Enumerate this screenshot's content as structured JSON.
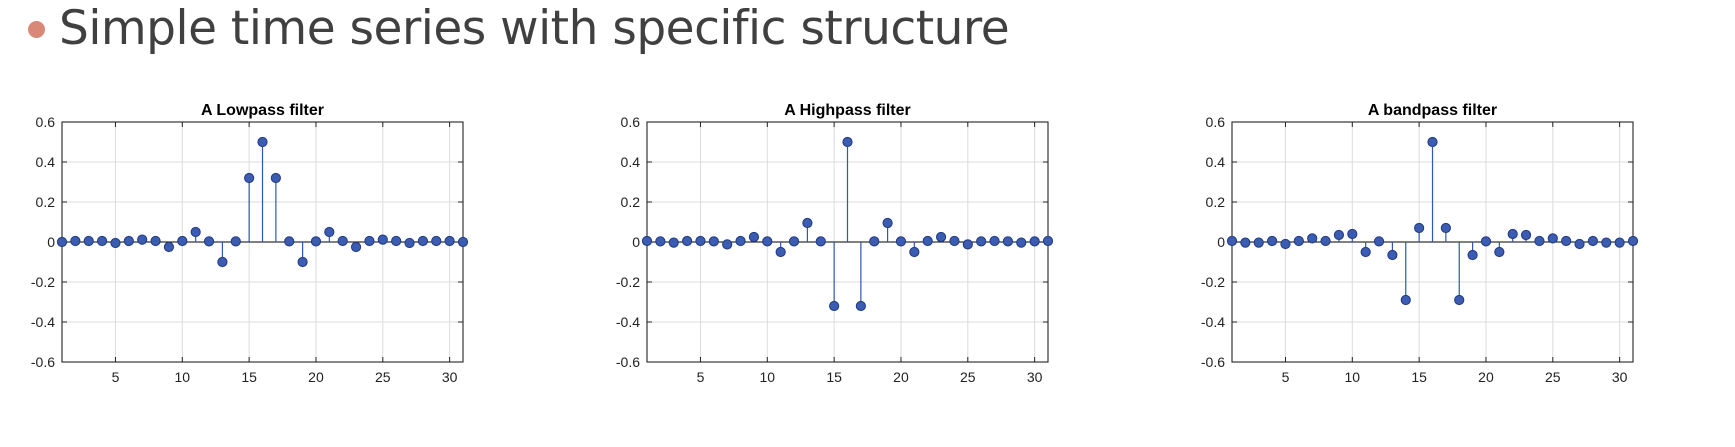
{
  "heading": {
    "text": "Simple time series with specific structure",
    "bullet_color": "#d98877"
  },
  "chart_data": [
    {
      "type": "stem",
      "title": "A Lowpass filter",
      "x": [
        1,
        2,
        3,
        4,
        5,
        6,
        7,
        8,
        9,
        10,
        11,
        12,
        13,
        14,
        15,
        16,
        17,
        18,
        19,
        20,
        21,
        22,
        23,
        24,
        25,
        26,
        27,
        28,
        29,
        30,
        31
      ],
      "values": [
        0,
        0.005,
        0.005,
        0.005,
        -0.005,
        0.005,
        0.012,
        0.005,
        -0.025,
        0.005,
        0.05,
        0.003,
        -0.1,
        0.003,
        0.32,
        0.5,
        0.32,
        0.003,
        -0.1,
        0.003,
        0.05,
        0.005,
        -0.025,
        0.005,
        0.012,
        0.005,
        -0.005,
        0.005,
        0.005,
        0.005,
        0
      ],
      "xlim": [
        1,
        31
      ],
      "ylim": [
        -0.6,
        0.6
      ],
      "xticks": [
        5,
        10,
        15,
        20,
        25,
        30
      ],
      "yticks": [
        -0.6,
        -0.4,
        -0.2,
        0,
        0.2,
        0.4,
        0.6
      ],
      "ytick_labels": [
        "-0.6",
        "-0.4",
        "-0.2",
        "0",
        "0.2",
        "0.4",
        "0.6"
      ],
      "grid": true,
      "marker_color": "#3b5cb0",
      "stem_color": "#2f56b5"
    },
    {
      "type": "stem",
      "title": "A Highpass filter",
      "x": [
        1,
        2,
        3,
        4,
        5,
        6,
        7,
        8,
        9,
        10,
        11,
        12,
        13,
        14,
        15,
        16,
        17,
        18,
        19,
        20,
        21,
        22,
        23,
        24,
        25,
        26,
        27,
        28,
        29,
        30,
        31
      ],
      "values": [
        0.005,
        0.003,
        -0.003,
        0.005,
        0.005,
        0.003,
        -0.012,
        0.005,
        0.025,
        0.003,
        -0.05,
        0.003,
        0.095,
        0.003,
        -0.32,
        0.5,
        -0.32,
        0.003,
        0.095,
        0.003,
        -0.05,
        0.005,
        0.025,
        0.005,
        -0.012,
        0.003,
        0.005,
        0.003,
        -0.003,
        0.003,
        0.005
      ],
      "xlim": [
        1,
        31
      ],
      "ylim": [
        -0.6,
        0.6
      ],
      "xticks": [
        5,
        10,
        15,
        20,
        25,
        30
      ],
      "yticks": [
        -0.6,
        -0.4,
        -0.2,
        0,
        0.2,
        0.4,
        0.6
      ],
      "ytick_labels": [
        "-0.6",
        "-0.4",
        "-0.2",
        "0",
        "0.2",
        "0.4",
        "0.6"
      ],
      "grid": true,
      "marker_color": "#3b5cb0",
      "stem_color": "#2f56b5"
    },
    {
      "type": "stem",
      "title": "A bandpass filter",
      "x": [
        1,
        2,
        3,
        4,
        5,
        6,
        7,
        8,
        9,
        10,
        11,
        12,
        13,
        14,
        15,
        16,
        17,
        18,
        19,
        20,
        21,
        22,
        23,
        24,
        25,
        26,
        27,
        28,
        29,
        30,
        31
      ],
      "values": [
        0.005,
        -0.003,
        -0.003,
        0.005,
        -0.01,
        0.005,
        0.018,
        0.005,
        0.035,
        0.04,
        -0.05,
        0.003,
        -0.065,
        -0.29,
        0.07,
        0.5,
        0.07,
        -0.29,
        -0.065,
        0.003,
        -0.05,
        0.04,
        0.035,
        0.005,
        0.018,
        0.005,
        -0.01,
        0.005,
        -0.003,
        -0.003,
        0.005
      ],
      "xlim": [
        1,
        31
      ],
      "ylim": [
        -0.6,
        0.6
      ],
      "xticks": [
        5,
        10,
        15,
        20,
        25,
        30
      ],
      "yticks": [
        -0.6,
        -0.4,
        -0.2,
        0,
        0.2,
        0.4,
        0.6
      ],
      "ytick_labels": [
        "-0.6",
        "-0.4",
        "-0.2",
        "0",
        "0.2",
        "0.4",
        "0.6"
      ],
      "grid": true,
      "marker_color": "#3b5cb0",
      "stem_color": "#2f56b5"
    }
  ]
}
